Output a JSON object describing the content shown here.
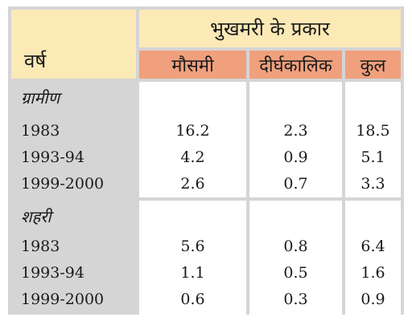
{
  "table": {
    "header_group": "भुखमरी के प्रकार",
    "year_header": "वर्ष",
    "columns": [
      "मौसमी",
      "दीर्घकालिक",
      "कुल"
    ],
    "sections": [
      {
        "label": "ग्रामीण",
        "rows": [
          {
            "year": "1983",
            "values": [
              "16.2",
              "2.3",
              "18.5"
            ]
          },
          {
            "year": "1993-94",
            "values": [
              "4.2",
              "0.9",
              "5.1"
            ]
          },
          {
            "year": "1999-2000",
            "values": [
              "2.6",
              "0.7",
              "3.3"
            ]
          }
        ]
      },
      {
        "label": "शहरी",
        "rows": [
          {
            "year": "1983",
            "values": [
              "5.6",
              "0.8",
              "6.4"
            ]
          },
          {
            "year": "1993-94",
            "values": [
              "1.1",
              "0.5",
              "1.6"
            ]
          },
          {
            "year": "1999-2000",
            "values": [
              "0.6",
              "0.3",
              "0.9"
            ]
          }
        ]
      }
    ]
  }
}
